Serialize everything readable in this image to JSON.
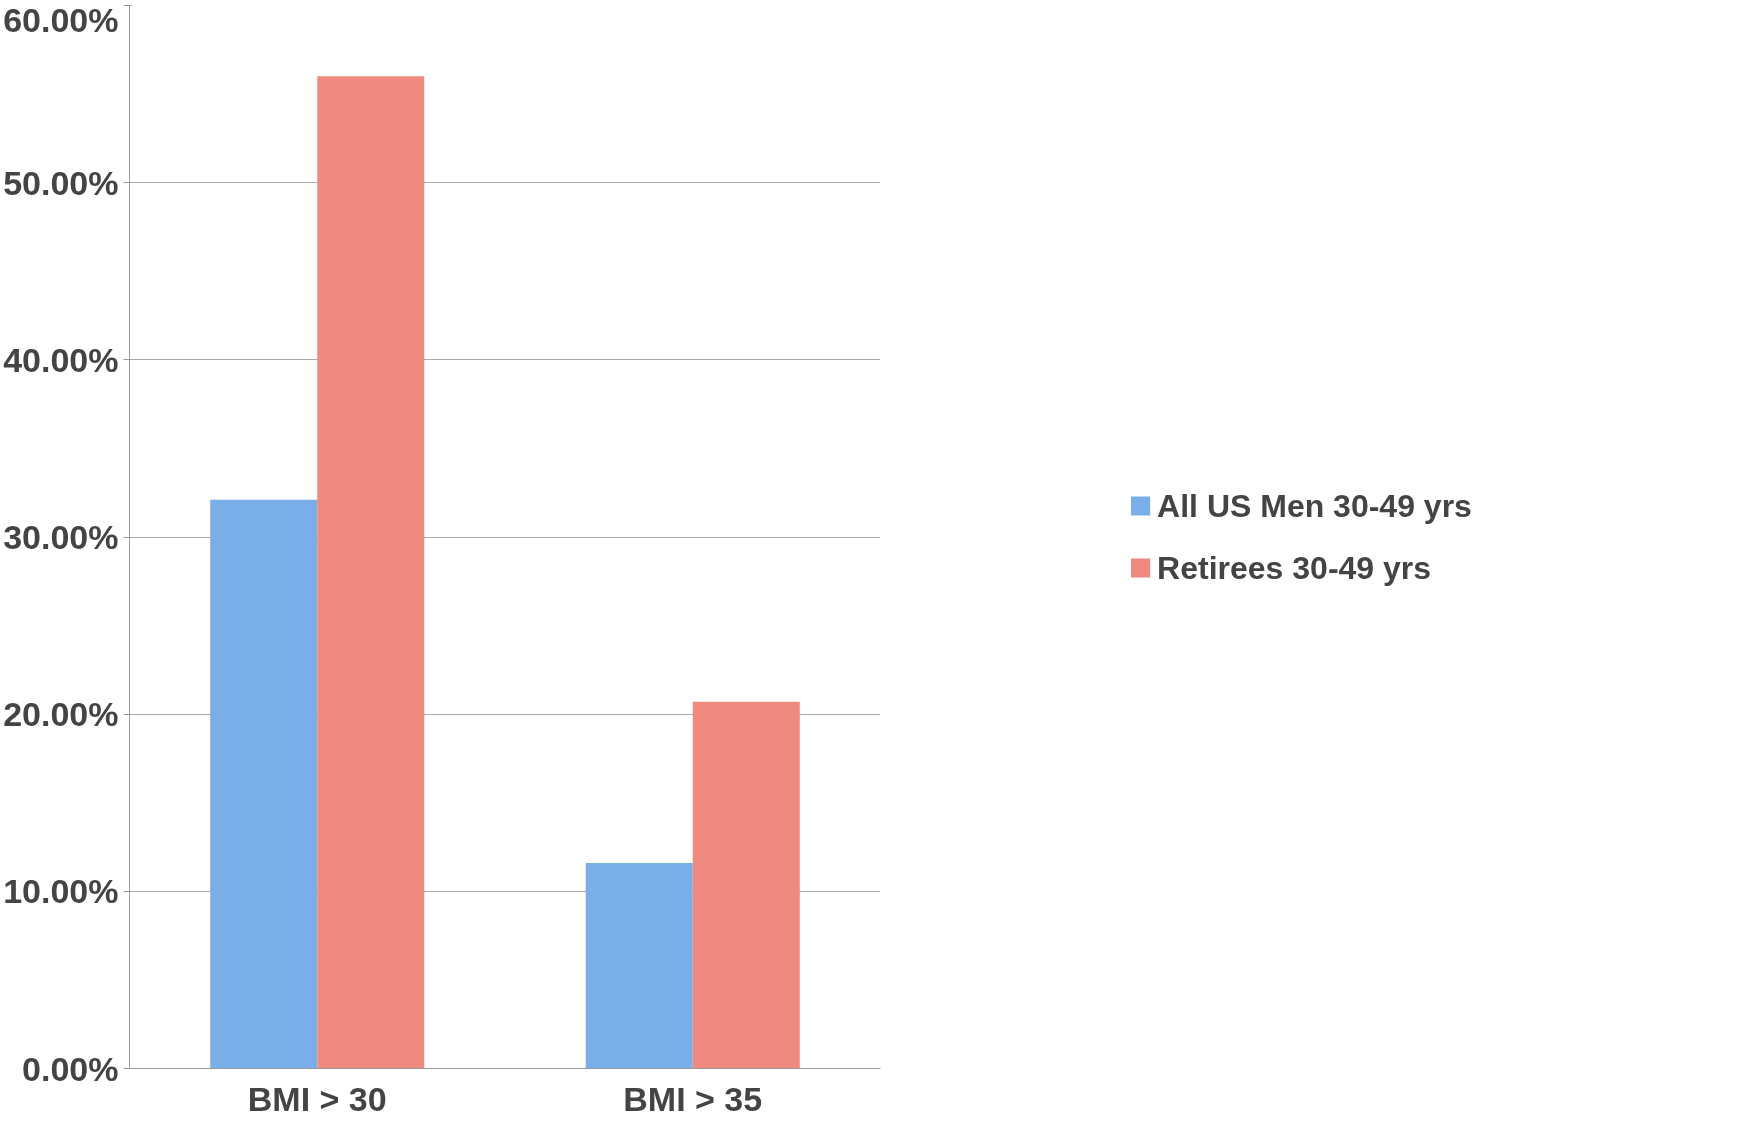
{
  "chart_data": {
    "type": "bar",
    "categories": [
      "BMI > 30",
      "BMI > 35"
    ],
    "series": [
      {
        "name": "All US Men 30-49 yrs",
        "color": "#7aaee8",
        "values": [
          32.1,
          11.6
        ]
      },
      {
        "name": "Retirees 30-49 yrs",
        "color": "#ee8a80",
        "values": [
          56.0,
          20.7
        ]
      }
    ],
    "ylim": [
      0,
      60
    ],
    "yticks": [
      {
        "value": 0,
        "label": "0.00%"
      },
      {
        "value": 10,
        "label": "10.00%"
      },
      {
        "value": 20,
        "label": "20.00%"
      },
      {
        "value": 30,
        "label": "30.00%"
      },
      {
        "value": 40,
        "label": "40.00%"
      },
      {
        "value": 50,
        "label": "50.00%"
      },
      {
        "value": 60,
        "label": "60.00%"
      }
    ],
    "grid": "y",
    "legend": "right"
  }
}
